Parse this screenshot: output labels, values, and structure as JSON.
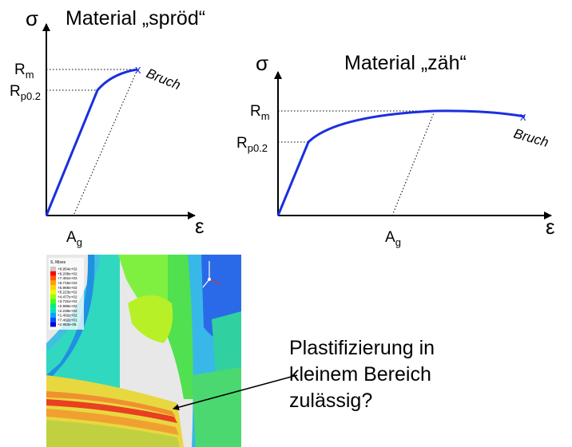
{
  "brittle": {
    "title": "Material „spröd“",
    "sigma": "σ",
    "epsilon": "ε",
    "rm": "R",
    "rm_sub": "m",
    "rp": "R",
    "rp_sub": "p0.2",
    "ag": "A",
    "ag_sub": "g",
    "bruch": "Bruch",
    "end_marker": "x"
  },
  "ductile": {
    "title": "Material „zäh“",
    "sigma": "σ",
    "epsilon": "ε",
    "rm": "R",
    "rm_sub": "m",
    "rp": "R",
    "rp_sub": "p0.2",
    "ag": "A",
    "ag_sub": "g",
    "bruch": "Bruch",
    "end_marker": "x"
  },
  "colors": {
    "curve": "#1a2fe0",
    "axis": "#000000",
    "guide": "#000000"
  },
  "fem": {
    "legend_title": "S, Mises",
    "legend_values": [
      "+8.954e+02",
      "+8.208e+02",
      "+7.461e+02",
      "+6.715e+02",
      "+5.969e+02",
      "+5.223e+02",
      "+4.477e+02",
      "+3.731e+02",
      "+2.985e+02",
      "+2.238e+02",
      "+1.492e+02",
      "+7.462e+01",
      "+2.953e-05"
    ],
    "legend_colors": [
      "#c8c8c8",
      "#ff0000",
      "#ff5a00",
      "#ffa000",
      "#ffd200",
      "#e6ff00",
      "#a0ff00",
      "#40ff20",
      "#00f070",
      "#00e0c0",
      "#00a8ff",
      "#0050ff",
      "#0000d8"
    ]
  },
  "callout": {
    "lines": [
      "Plastifizierung in",
      "kleinem Bereich",
      "zulässig?"
    ]
  }
}
